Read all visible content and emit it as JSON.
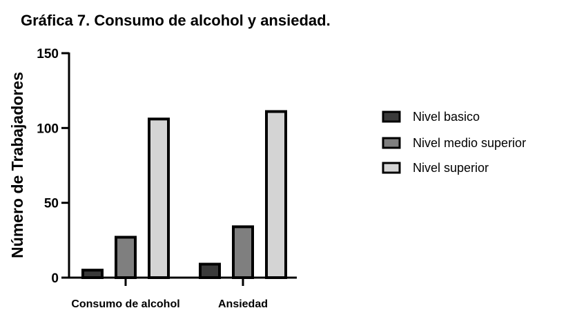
{
  "chart_data": {
    "type": "bar",
    "title": "Gráfica 7. Consumo de alcohol y ansiedad.",
    "xlabel": "",
    "ylabel": "Número de Trabajadores",
    "ylim": [
      0,
      150
    ],
    "yticks": [
      0,
      50,
      100,
      150
    ],
    "categories": [
      "Consumo de alcohol",
      "Ansiedad"
    ],
    "series": [
      {
        "name": "Nivel basico",
        "color": "#3a3a3a",
        "values": [
          5,
          9
        ]
      },
      {
        "name": "Nivel medio superior",
        "color": "#7f7f7f",
        "values": [
          27,
          34
        ]
      },
      {
        "name": "Nivel superior",
        "color": "#d4d4d4",
        "values": [
          106,
          111
        ]
      }
    ],
    "legend_position": "right",
    "grid": false
  }
}
